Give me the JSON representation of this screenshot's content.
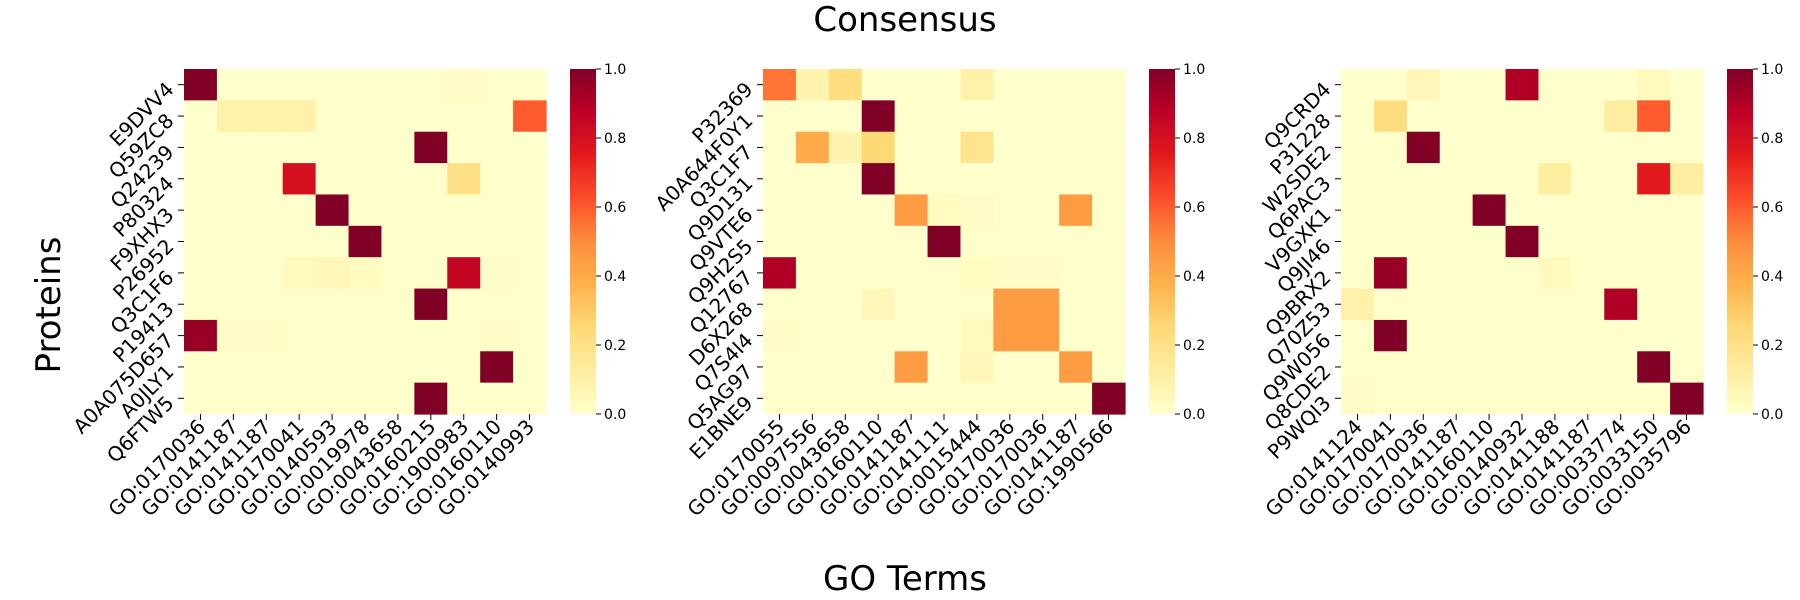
{
  "chart_data": {
    "type": "heatmap",
    "title": "Consensus",
    "xlabel": "GO Terms",
    "ylabel": "Proteins",
    "colormap": "YlOrRd",
    "colorbar": {
      "range": [
        0,
        1
      ],
      "ticks": [
        "0.0",
        "0.2",
        "0.4",
        "0.6",
        "0.8",
        "1.0"
      ]
    },
    "panels": [
      {
        "rows": [
          "E9DVV4",
          "Q59ZC8",
          "Q24239",
          "P80324",
          "F9XHX3",
          "P26952",
          "Q3C1F6",
          "P19413",
          "A0A075D657",
          "A0JLY1",
          "Q6FTW5"
        ],
        "cols": [
          "GO:0170036",
          "GO:0141187",
          "GO:0141187",
          "GO:0170041",
          "GO:0140593",
          "GO:0019978",
          "GO:0043658",
          "GO:0160215",
          "GO:1900983",
          "GO:0160110",
          "GO:0140993"
        ],
        "values": [
          [
            1.0,
            0.0,
            0.0,
            0.0,
            0.0,
            0.0,
            0.0,
            0.0,
            0.02,
            0.0,
            0.0
          ],
          [
            0.0,
            0.1,
            0.1,
            0.1,
            0.0,
            0.0,
            0.0,
            0.0,
            0.0,
            0.0,
            0.6
          ],
          [
            0.0,
            0.0,
            0.0,
            0.0,
            0.0,
            0.0,
            0.0,
            1.0,
            0.0,
            0.0,
            0.0
          ],
          [
            0.0,
            0.0,
            0.0,
            0.8,
            0.0,
            0.0,
            0.0,
            0.0,
            0.2,
            0.0,
            0.0
          ],
          [
            0.0,
            0.0,
            0.0,
            0.0,
            1.0,
            0.0,
            0.0,
            0.0,
            0.0,
            0.0,
            0.0
          ],
          [
            0.0,
            0.0,
            0.0,
            0.0,
            0.0,
            1.0,
            0.0,
            0.0,
            0.0,
            0.0,
            0.0
          ],
          [
            0.0,
            0.0,
            0.0,
            0.04,
            0.06,
            0.03,
            0.0,
            0.0,
            0.85,
            0.01,
            0.0
          ],
          [
            0.0,
            0.0,
            0.0,
            0.0,
            0.0,
            0.0,
            0.0,
            1.0,
            0.0,
            0.0,
            0.0
          ],
          [
            0.95,
            0.02,
            0.02,
            0.0,
            0.0,
            0.0,
            0.0,
            0.0,
            0.0,
            0.02,
            0.0
          ],
          [
            0.0,
            0.0,
            0.0,
            0.0,
            0.0,
            0.0,
            0.0,
            0.0,
            0.0,
            1.0,
            0.0
          ],
          [
            0.0,
            0.0,
            0.0,
            0.0,
            0.0,
            0.0,
            0.0,
            1.0,
            0.0,
            0.0,
            0.0
          ]
        ]
      },
      {
        "rows": [
          "P32369",
          "A0A644F0Y1",
          "Q3C1F7",
          "Q9D131",
          "Q9VTE6",
          "Q9H2S5",
          "Q12767",
          "D6X268",
          "Q7S4I4",
          "Q5AG97",
          "E1BNE9"
        ],
        "cols": [
          "GO:0170055",
          "GO:0097556",
          "GO:0043658",
          "GO:0160110",
          "GO:0141187",
          "GO:0141111",
          "GO:0015444",
          "GO:0170036",
          "GO:0170036",
          "GO:0141187",
          "GO:1990566"
        ],
        "values": [
          [
            0.55,
            0.08,
            0.22,
            0.0,
            0.0,
            0.0,
            0.1,
            0.0,
            0.0,
            0.0,
            0.0
          ],
          [
            0.0,
            0.0,
            0.0,
            1.0,
            0.0,
            0.0,
            0.0,
            0.0,
            0.0,
            0.0,
            0.0
          ],
          [
            0.0,
            0.4,
            0.08,
            0.25,
            0.0,
            0.0,
            0.18,
            0.0,
            0.0,
            0.0,
            0.0
          ],
          [
            0.0,
            0.0,
            0.0,
            1.0,
            0.0,
            0.0,
            0.0,
            0.0,
            0.0,
            0.0,
            0.0
          ],
          [
            0.0,
            0.0,
            0.0,
            0.0,
            0.45,
            0.03,
            0.02,
            0.0,
            0.0,
            0.45,
            0.0
          ],
          [
            0.0,
            0.0,
            0.0,
            0.0,
            0.0,
            1.0,
            0.0,
            0.0,
            0.0,
            0.0,
            0.0
          ],
          [
            0.9,
            0.0,
            0.0,
            0.0,
            0.0,
            0.0,
            0.03,
            0.02,
            0.02,
            0.0,
            0.0
          ],
          [
            0.0,
            0.0,
            0.0,
            0.05,
            0.0,
            0.0,
            0.0,
            0.45,
            0.45,
            0.0,
            0.0
          ],
          [
            0.02,
            0.0,
            0.0,
            0.0,
            0.0,
            0.0,
            0.04,
            0.45,
            0.45,
            0.0,
            0.0
          ],
          [
            0.0,
            0.0,
            0.0,
            0.0,
            0.45,
            0.0,
            0.06,
            0.0,
            0.0,
            0.45,
            0.0
          ],
          [
            0.0,
            0.0,
            0.0,
            0.0,
            0.0,
            0.0,
            0.0,
            0.0,
            0.0,
            0.0,
            1.0
          ]
        ]
      },
      {
        "rows": [
          "Q9CRD4",
          "P31228",
          "W2SDE2",
          "Q6PAC3",
          "V9GXK1",
          "Q9JI46",
          "Q9BRX2",
          "Q70Z53",
          "Q9W056",
          "Q8CDE2",
          "P9WQI3"
        ],
        "cols": [
          "GO:0141124",
          "GO:0170041",
          "GO:0170036",
          "GO:0141187",
          "GO:0160110",
          "GO:0140932",
          "GO:0141188",
          "GO:0141187",
          "GO:0033774",
          "GO:0033150",
          "GO:0035796"
        ],
        "values": [
          [
            0.0,
            0.0,
            0.06,
            0.0,
            0.0,
            0.9,
            0.0,
            0.0,
            0.0,
            0.04,
            0.0
          ],
          [
            0.0,
            0.22,
            0.0,
            0.0,
            0.0,
            0.0,
            0.0,
            0.0,
            0.12,
            0.6,
            0.0
          ],
          [
            0.0,
            0.0,
            1.0,
            0.0,
            0.0,
            0.0,
            0.0,
            0.0,
            0.0,
            0.0,
            0.0
          ],
          [
            0.0,
            0.0,
            0.0,
            0.0,
            0.0,
            0.0,
            0.12,
            0.0,
            0.0,
            0.75,
            0.12
          ],
          [
            0.0,
            0.0,
            0.0,
            0.0,
            1.0,
            0.0,
            0.0,
            0.0,
            0.0,
            0.0,
            0.0
          ],
          [
            0.0,
            0.0,
            0.0,
            0.0,
            0.0,
            1.0,
            0.0,
            0.0,
            0.0,
            0.0,
            0.0
          ],
          [
            0.0,
            0.95,
            0.0,
            0.0,
            0.0,
            0.0,
            0.04,
            0.0,
            0.0,
            0.0,
            0.0
          ],
          [
            0.1,
            0.0,
            0.0,
            0.0,
            0.0,
            0.0,
            0.0,
            0.0,
            0.9,
            0.0,
            0.0
          ],
          [
            0.0,
            1.0,
            0.0,
            0.0,
            0.0,
            0.0,
            0.0,
            0.0,
            0.0,
            0.0,
            0.0
          ],
          [
            0.0,
            0.0,
            0.0,
            0.0,
            0.0,
            0.0,
            0.0,
            0.0,
            0.0,
            1.0,
            0.0
          ],
          [
            0.02,
            0.0,
            0.0,
            0.0,
            0.0,
            0.0,
            0.0,
            0.0,
            0.0,
            0.0,
            1.0
          ]
        ]
      }
    ]
  }
}
